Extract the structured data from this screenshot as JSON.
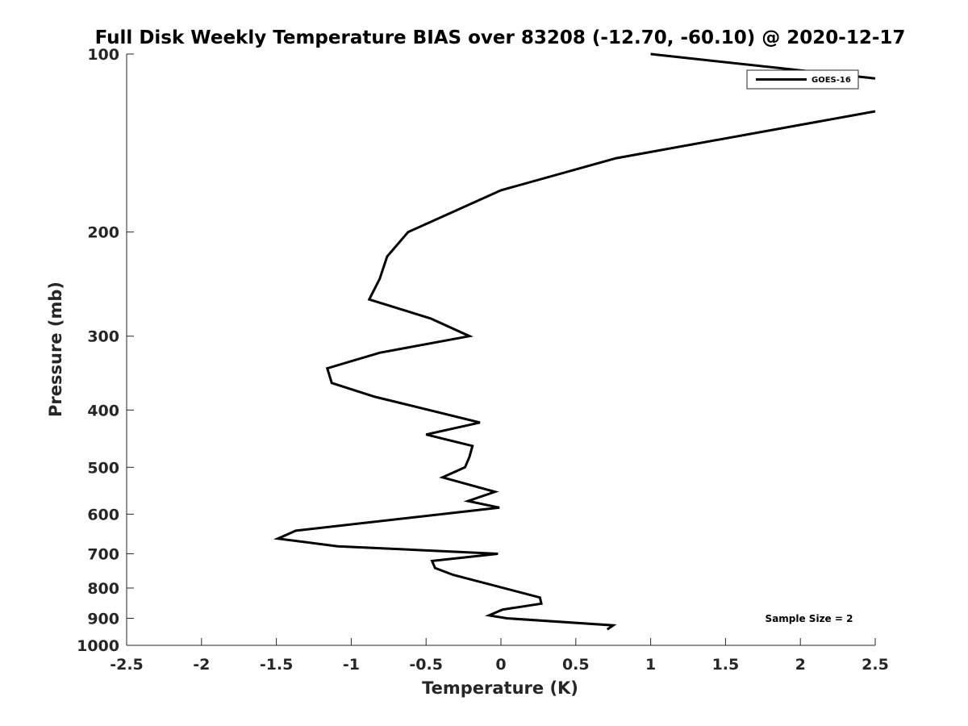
{
  "chart_data": {
    "type": "line",
    "title": "Full Disk Weekly Temperature BIAS over 83208 (-12.70, -60.10) @ 2020-12-17",
    "xlabel": "Temperature (K)",
    "ylabel": "Pressure (mb)",
    "xlim": [
      -2.5,
      2.5
    ],
    "ylim": [
      100,
      1000
    ],
    "y_scale": "log",
    "y_reversed": true,
    "x_ticks": [
      "-2.5",
      "-2",
      "-1.5",
      "-1",
      "-0.5",
      "0",
      "0.5",
      "1",
      "1.5",
      "2",
      "2.5"
    ],
    "x_tick_values": [
      -2.5,
      -2,
      -1.5,
      -1,
      -0.5,
      0,
      0.5,
      1,
      1.5,
      2,
      2.5
    ],
    "y_ticks": [
      "100",
      "200",
      "300",
      "400",
      "500",
      "600",
      "700",
      "800",
      "900",
      "1000"
    ],
    "y_tick_values": [
      100,
      200,
      300,
      400,
      500,
      600,
      700,
      800,
      900,
      1000
    ],
    "grid": false,
    "legend": {
      "position": "top-right",
      "entries": [
        "GOES-16"
      ]
    },
    "annotation": "Sample Size = 2",
    "series": [
      {
        "name": "GOES-16",
        "color": "#000000",
        "x": [
          1.0,
          2.5,
          null,
          2.5,
          0.77,
          0.0,
          -0.62,
          -0.76,
          -0.81,
          -0.88,
          -0.47,
          -0.21,
          -0.81,
          -1.16,
          -1.13,
          -0.84,
          -0.48,
          -0.14,
          -0.5,
          -0.19,
          -0.21,
          -0.24,
          -0.39,
          -0.04,
          -0.22,
          -0.01,
          -1.37,
          -1.49,
          -1.09,
          -0.02,
          -0.46,
          -0.44,
          -0.32,
          0.26,
          0.27,
          0.01,
          -0.08,
          0.04,
          0.75,
          0.71
        ],
        "y": [
          100,
          110,
          null,
          125,
          150,
          170,
          200,
          220,
          240,
          260,
          280,
          300,
          320,
          340,
          360,
          380,
          400,
          420,
          440,
          460,
          480,
          500,
          520,
          550,
          570,
          585,
          640,
          660,
          680,
          700,
          720,
          740,
          760,
          830,
          850,
          870,
          890,
          900,
          925,
          940
        ]
      }
    ]
  }
}
